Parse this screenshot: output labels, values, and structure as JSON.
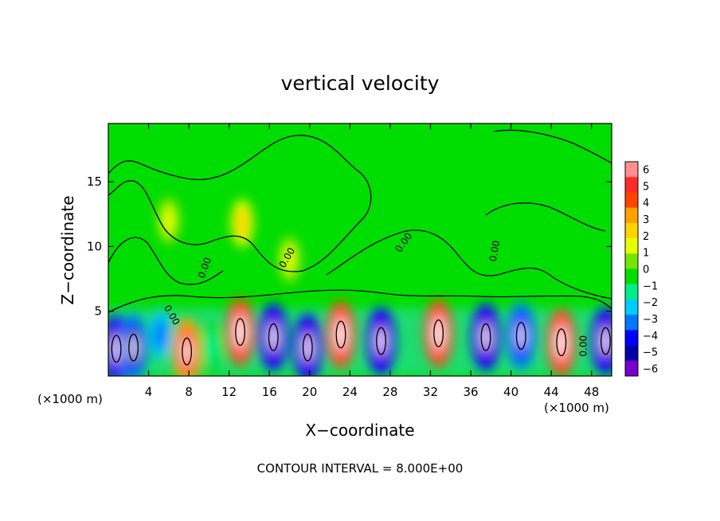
{
  "chart_data": {
    "type": "heatmap",
    "title": "vertical velocity",
    "xlabel": "X−coordinate",
    "ylabel": "Z−coordinate",
    "x_unit": "(×1000 m)",
    "x_unit_right": "(×1000 m)",
    "xlim": [
      0,
      50
    ],
    "ylim": [
      0,
      19.5
    ],
    "x_ticks": [
      4,
      8,
      12,
      16,
      20,
      24,
      28,
      32,
      36,
      40,
      44,
      48
    ],
    "y_ticks": [
      5,
      10,
      15
    ],
    "footer": "CONTOUR INTERVAL = 8.000E+00",
    "contour_label": "0.00",
    "colorbar": {
      "ticks": [
        6,
        5,
        4,
        3,
        2,
        1,
        0,
        -1,
        -2,
        -3,
        -4,
        -5,
        -6
      ],
      "colors": [
        "#ff8f8f",
        "#ff2a2a",
        "#ff4400",
        "#ffa200",
        "#ffd400",
        "#e8ff00",
        "#74e600",
        "#00dd00",
        "#00ee88",
        "#00ccff",
        "#0077ff",
        "#0000ff",
        "#0000aa",
        "#7700cc"
      ]
    },
    "cells": [
      {
        "x": 0.8,
        "z": 2.1,
        "value": -6
      },
      {
        "x": 2.5,
        "z": 2.2,
        "value": -5
      },
      {
        "x": 5.2,
        "z": 3.2,
        "value": -3
      },
      {
        "x": 7.8,
        "z": 1.9,
        "value": 5
      },
      {
        "x": 10.2,
        "z": 2.2,
        "value": -1
      },
      {
        "x": 13.1,
        "z": 3.4,
        "value": 6
      },
      {
        "x": 16.4,
        "z": 3.0,
        "value": -6
      },
      {
        "x": 19.8,
        "z": 2.2,
        "value": -6
      },
      {
        "x": 23.1,
        "z": 3.2,
        "value": 6
      },
      {
        "x": 27.1,
        "z": 2.7,
        "value": -6
      },
      {
        "x": 32.8,
        "z": 3.3,
        "value": 6
      },
      {
        "x": 37.5,
        "z": 3.0,
        "value": -6
      },
      {
        "x": 41.0,
        "z": 3.1,
        "value": -4
      },
      {
        "x": 45.0,
        "z": 2.6,
        "value": 6
      },
      {
        "x": 49.4,
        "z": 2.7,
        "value": -6
      },
      {
        "x": 13.3,
        "z": 11.8,
        "value": 2
      },
      {
        "x": 18.0,
        "z": 9.0,
        "value": 1
      },
      {
        "x": 6.0,
        "z": 12.0,
        "value": 1
      }
    ]
  }
}
